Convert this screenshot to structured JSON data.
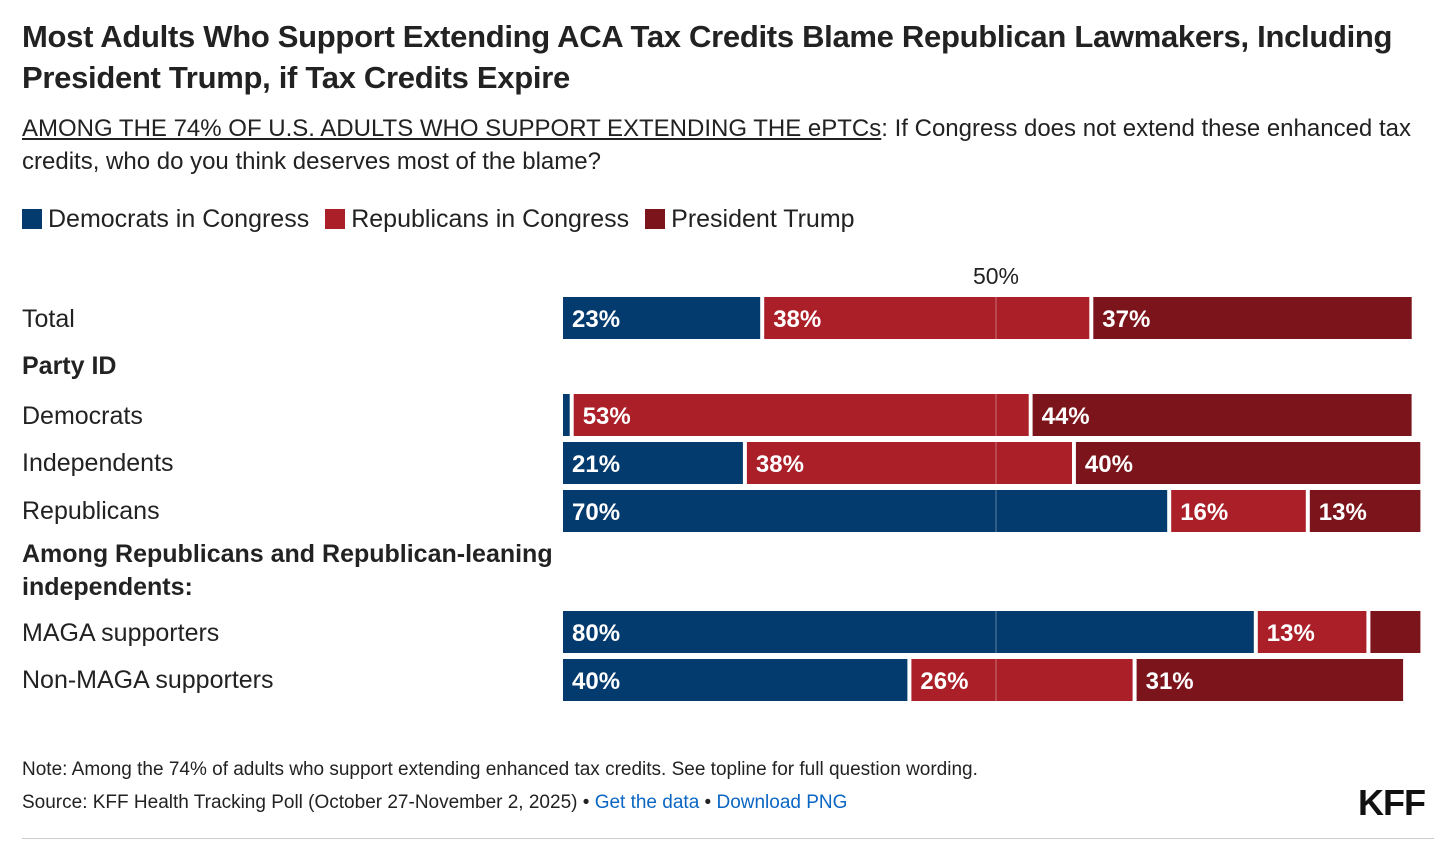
{
  "title": "Most Adults Who Support Extending ACA Tax Credits Blame Republican Lawmakers, Including President Trump, if Tax Credits Expire",
  "subtitle": {
    "underlined": "AMONG THE 74% OF U.S. ADULTS WHO SUPPORT EXTENDING THE ePTCs",
    "rest": ": If Congress does not extend these enhanced tax credits, who do you think deserves most of the blame?"
  },
  "colors": {
    "democrats": "#043b6e",
    "republicans": "#ab1f29",
    "trump": "#7b141b"
  },
  "chart_data": {
    "type": "bar",
    "orientation": "horizontal",
    "stacked": true,
    "title": "Most Adults Who Support Extending ACA Tax Credits Blame Republican Lawmakers, Including President Trump, if Tax Credits Expire",
    "reference_line": {
      "value": 50,
      "label": "50%"
    },
    "xlim": [
      0,
      100
    ],
    "series": [
      {
        "name": "Democrats in Congress",
        "color": "#043b6e"
      },
      {
        "name": "Republicans in Congress",
        "color": "#ab1f29"
      },
      {
        "name": "President Trump",
        "color": "#7b141b"
      }
    ],
    "rows": [
      {
        "type": "bar",
        "label": "Total",
        "values": [
          23,
          38,
          37
        ],
        "labels": [
          "23%",
          "38%",
          "37%"
        ]
      },
      {
        "type": "header",
        "label": "Party ID"
      },
      {
        "type": "bar",
        "label": "Democrats",
        "values": [
          1,
          53,
          44
        ],
        "labels": [
          "",
          "53%",
          "44%"
        ]
      },
      {
        "type": "bar",
        "label": "Independents",
        "values": [
          21,
          38,
          40
        ],
        "labels": [
          "21%",
          "38%",
          "40%"
        ]
      },
      {
        "type": "bar",
        "label": "Republicans",
        "values": [
          70,
          16,
          13
        ],
        "labels": [
          "70%",
          "16%",
          "13%"
        ]
      },
      {
        "type": "header",
        "label": "Among Republicans and Republican-leaning independents:"
      },
      {
        "type": "bar",
        "label": "MAGA supporters",
        "values": [
          80,
          13,
          6
        ],
        "labels": [
          "80%",
          "13%",
          ""
        ]
      },
      {
        "type": "bar",
        "label": "Non-MAGA supporters",
        "values": [
          40,
          26,
          31
        ],
        "labels": [
          "40%",
          "26%",
          "31%"
        ]
      }
    ],
    "legend_position": "top-left"
  },
  "footer": {
    "note": "Note: Among the 74% of adults who support extending enhanced tax credits. See topline for full question wording.",
    "source_prefix": "Source: KFF Health Tracking Poll (October 27-November 2, 2025)",
    "separator": "•",
    "get_data": "Get the data",
    "download": "Download PNG",
    "logo": "KFF"
  }
}
